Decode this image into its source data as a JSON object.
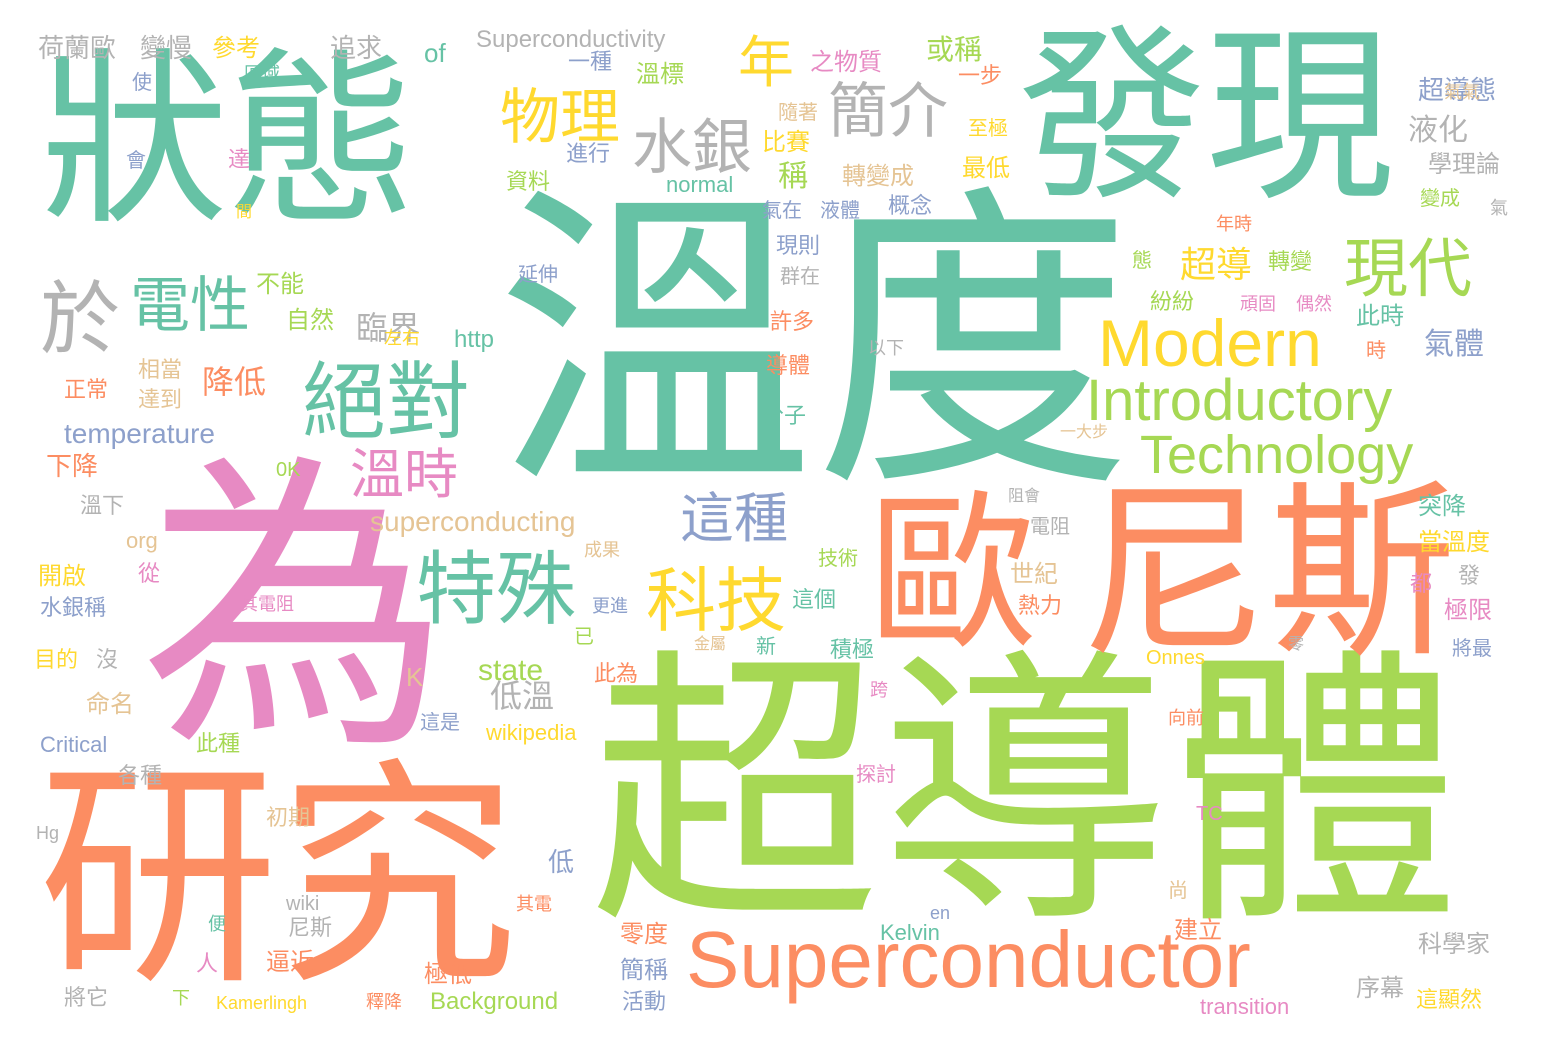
{
  "palette": {
    "green": "#66c2a5",
    "orange": "#fc8d62",
    "blue": "#8da0cb",
    "pink": "#e78ac3",
    "lime": "#a6d854",
    "yellow": "#ffd92f",
    "tan": "#e5c494",
    "gray": "#b3b3b3"
  },
  "words": [
    {
      "text": "溫度",
      "color": "#66c2a5"
    },
    {
      "text": "狀態",
      "color": "#66c2a5"
    },
    {
      "text": "發現",
      "color": "#66c2a5"
    },
    {
      "text": "為",
      "color": "#e78ac3"
    },
    {
      "text": "研究",
      "color": "#fc8d62"
    },
    {
      "text": "超導體",
      "color": "#a6d854"
    },
    {
      "text": "歐",
      "color": "#fc8d62"
    },
    {
      "text": "尼斯",
      "color": "#fc8d62"
    },
    {
      "text": "Superconductor",
      "color": "#fc8d62"
    },
    {
      "text": "Modern",
      "color": "#ffd92f"
    },
    {
      "text": "Introductory",
      "color": "#a6d854"
    },
    {
      "text": "Technology",
      "color": "#a6d854"
    },
    {
      "text": "絕對",
      "color": "#66c2a5"
    },
    {
      "text": "特殊",
      "color": "#66c2a5"
    },
    {
      "text": "科技",
      "color": "#ffd92f"
    },
    {
      "text": "現代",
      "color": "#a6d854"
    },
    {
      "text": "水銀",
      "color": "#b3b3b3"
    },
    {
      "text": "簡介",
      "color": "#b3b3b3"
    },
    {
      "text": "物理",
      "color": "#ffd92f"
    },
    {
      "text": "電性",
      "color": "#66c2a5"
    },
    {
      "text": "於",
      "color": "#b3b3b3"
    },
    {
      "text": "這種",
      "color": "#8da0cb"
    },
    {
      "text": "溫時",
      "color": "#e78ac3"
    },
    {
      "text": "年",
      "color": "#ffd92f"
    },
    {
      "text": "superconducting",
      "color": "#e5c494"
    },
    {
      "text": "state",
      "color": "#a6d854"
    },
    {
      "text": "temperature",
      "color": "#8da0cb"
    },
    {
      "text": "超導",
      "color": "#ffd92f"
    },
    {
      "text": "臨界",
      "color": "#b3b3b3"
    },
    {
      "text": "降低",
      "color": "#fc8d62"
    },
    {
      "text": "低溫",
      "color": "#b3b3b3"
    },
    {
      "text": "液化",
      "color": "#b3b3b3"
    },
    {
      "text": "氣體",
      "color": "#8da0cb"
    },
    {
      "text": "超導態",
      "color": "#8da0cb"
    },
    {
      "text": "Superconductivity",
      "color": "#b3b3b3"
    },
    {
      "text": "荷蘭歐",
      "color": "#b3b3b3"
    },
    {
      "text": "變慢",
      "color": "#b3b3b3"
    },
    {
      "text": "參考",
      "color": "#ffd92f"
    },
    {
      "text": "追求",
      "color": "#b3b3b3"
    },
    {
      "text": "of",
      "color": "#66c2a5"
    },
    {
      "text": "或稱",
      "color": "#a6d854"
    },
    {
      "text": "之物質",
      "color": "#e78ac3"
    },
    {
      "text": "一種",
      "color": "#8da0cb"
    },
    {
      "text": "溫標",
      "color": "#a6d854"
    },
    {
      "text": "使",
      "color": "#8da0cb"
    },
    {
      "text": "區域",
      "color": "#66c2a5"
    },
    {
      "text": "隨著",
      "color": "#e5c494"
    },
    {
      "text": "一步",
      "color": "#fc8d62"
    },
    {
      "text": "氣氣",
      "color": "#e5c494"
    },
    {
      "text": "學理論",
      "color": "#b3b3b3"
    },
    {
      "text": "比賽",
      "color": "#ffd92f"
    },
    {
      "text": "至極",
      "color": "#ffd92f"
    },
    {
      "text": "進行",
      "color": "#8da0cb"
    },
    {
      "text": "資料",
      "color": "#a6d854"
    },
    {
      "text": "稱",
      "color": "#a6d854"
    },
    {
      "text": "轉變成",
      "color": "#e5c494"
    },
    {
      "text": "最低",
      "color": "#ffd92f"
    },
    {
      "text": "normal",
      "color": "#66c2a5"
    },
    {
      "text": "會",
      "color": "#8da0cb"
    },
    {
      "text": "達",
      "color": "#e78ac3"
    },
    {
      "text": "氣在",
      "color": "#8da0cb"
    },
    {
      "text": "液體",
      "color": "#8da0cb"
    },
    {
      "text": "概念",
      "color": "#8da0cb"
    },
    {
      "text": "變成",
      "color": "#a6d854"
    },
    {
      "text": "氣",
      "color": "#b3b3b3"
    },
    {
      "text": "間",
      "color": "#ffd92f"
    },
    {
      "text": "年時",
      "color": "#fc8d62"
    },
    {
      "text": "現則",
      "color": "#8da0cb"
    },
    {
      "text": "延伸",
      "color": "#8da0cb"
    },
    {
      "text": "群在",
      "color": "#b3b3b3"
    },
    {
      "text": "態",
      "color": "#a6d854"
    },
    {
      "text": "轉變",
      "color": "#a6d854"
    },
    {
      "text": "不能",
      "color": "#a6d854"
    },
    {
      "text": "紛紛",
      "color": "#a6d854"
    },
    {
      "text": "頑固",
      "color": "#e78ac3"
    },
    {
      "text": "偶然",
      "color": "#e78ac3"
    },
    {
      "text": "此時",
      "color": "#66c2a5"
    },
    {
      "text": "自然",
      "color": "#a6d854"
    },
    {
      "text": "許多",
      "color": "#fc8d62"
    },
    {
      "text": "左右",
      "color": "#ffd92f"
    },
    {
      "text": "http",
      "color": "#66c2a5"
    },
    {
      "text": "以下",
      "color": "#b3b3b3"
    },
    {
      "text": "時",
      "color": "#fc8d62"
    },
    {
      "text": "相當",
      "color": "#e5c494"
    },
    {
      "text": "導體",
      "color": "#fc8d62"
    },
    {
      "text": "正常",
      "color": "#fc8d62"
    },
    {
      "text": "達到",
      "color": "#e5c494"
    },
    {
      "text": "分子",
      "color": "#66c2a5"
    },
    {
      "text": "一大步",
      "color": "#e5c494"
    },
    {
      "text": "下降",
      "color": "#fc8d62"
    },
    {
      "text": "0K",
      "color": "#a6d854"
    },
    {
      "text": "溫下",
      "color": "#b3b3b3"
    },
    {
      "text": "阻會",
      "color": "#b3b3b3"
    },
    {
      "text": "突降",
      "color": "#66c2a5"
    },
    {
      "text": "電阻",
      "color": "#b3b3b3"
    },
    {
      "text": "當溫度",
      "color": "#ffd92f"
    },
    {
      "text": "org",
      "color": "#e5c494"
    },
    {
      "text": "成果",
      "color": "#e5c494"
    },
    {
      "text": "技術",
      "color": "#a6d854"
    },
    {
      "text": "世紀",
      "color": "#e5c494"
    },
    {
      "text": "發",
      "color": "#b3b3b3"
    },
    {
      "text": "開啟",
      "color": "#ffd92f"
    },
    {
      "text": "從",
      "color": "#e78ac3"
    },
    {
      "text": "都",
      "color": "#e78ac3"
    },
    {
      "text": "水銀稱",
      "color": "#8da0cb"
    },
    {
      "text": "其電阻",
      "color": "#e78ac3"
    },
    {
      "text": "更進",
      "color": "#8da0cb"
    },
    {
      "text": "已",
      "color": "#a6d854"
    },
    {
      "text": "這個",
      "color": "#66c2a5"
    },
    {
      "text": "熱力",
      "color": "#fc8d62"
    },
    {
      "text": "極限",
      "color": "#e78ac3"
    },
    {
      "text": "目的",
      "color": "#ffd92f"
    },
    {
      "text": "沒",
      "color": "#b3b3b3"
    },
    {
      "text": "金屬",
      "color": "#e5c494"
    },
    {
      "text": "新",
      "color": "#66c2a5"
    },
    {
      "text": "積極",
      "color": "#66c2a5"
    },
    {
      "text": "Onnes",
      "color": "#ffd92f"
    },
    {
      "text": "零",
      "color": "#b3b3b3"
    },
    {
      "text": "將最",
      "color": "#8da0cb"
    },
    {
      "text": "此為",
      "color": "#fc8d62"
    },
    {
      "text": "K",
      "color": "#e5c494"
    },
    {
      "text": "命名",
      "color": "#e5c494"
    },
    {
      "text": "跨",
      "color": "#e78ac3"
    },
    {
      "text": "這是",
      "color": "#8da0cb"
    },
    {
      "text": "wikipedia",
      "color": "#ffd92f"
    },
    {
      "text": "向前",
      "color": "#fc8d62"
    },
    {
      "text": "Critical",
      "color": "#8da0cb"
    },
    {
      "text": "此種",
      "color": "#a6d854"
    },
    {
      "text": "探討",
      "color": "#e78ac3"
    },
    {
      "text": "各種",
      "color": "#b3b3b3"
    },
    {
      "text": "Hg",
      "color": "#b3b3b3"
    },
    {
      "text": "初期",
      "color": "#e5c494"
    },
    {
      "text": "TC",
      "color": "#e78ac3"
    },
    {
      "text": "低",
      "color": "#8da0cb"
    },
    {
      "text": "wiki",
      "color": "#b3b3b3"
    },
    {
      "text": "其電",
      "color": "#fc8d62"
    },
    {
      "text": "尚",
      "color": "#e5c494"
    },
    {
      "text": "en",
      "color": "#8da0cb"
    },
    {
      "text": "便",
      "color": "#66c2a5"
    },
    {
      "text": "尼斯",
      "color": "#b3b3b3"
    },
    {
      "text": "零度",
      "color": "#fc8d62"
    },
    {
      "text": "Kelvin",
      "color": "#66c2a5"
    },
    {
      "text": "建立",
      "color": "#fc8d62"
    },
    {
      "text": "科學家",
      "color": "#b3b3b3"
    },
    {
      "text": "人",
      "color": "#e78ac3"
    },
    {
      "text": "逼近",
      "color": "#fc8d62"
    },
    {
      "text": "簡稱",
      "color": "#8da0cb"
    },
    {
      "text": "將它",
      "color": "#b3b3b3"
    },
    {
      "text": "極低",
      "color": "#fc8d62"
    },
    {
      "text": "序幕",
      "color": "#b3b3b3"
    },
    {
      "text": "下",
      "color": "#a6d854"
    },
    {
      "text": "Kamerlingh",
      "color": "#ffd92f"
    },
    {
      "text": "釋降",
      "color": "#fc8d62"
    },
    {
      "text": "Background",
      "color": "#a6d854"
    },
    {
      "text": "活動",
      "color": "#8da0cb"
    },
    {
      "text": "transition",
      "color": "#e78ac3"
    },
    {
      "text": "這顯然",
      "color": "#ffd92f"
    }
  ]
}
